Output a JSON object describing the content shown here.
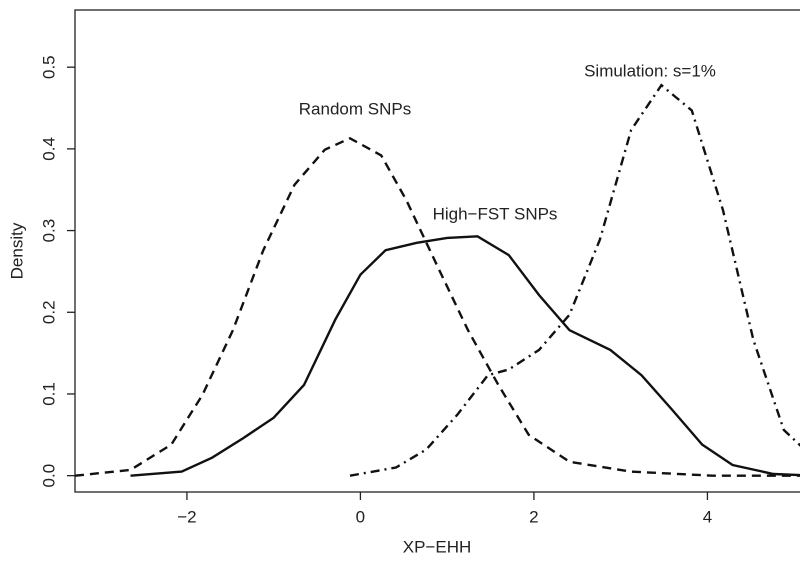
{
  "chart_data": {
    "type": "line",
    "x_label": "XP−EHH",
    "y_label": "Density",
    "xlim": [
      -3.29,
      5.24
    ],
    "ylim": [
      -0.02,
      0.57
    ],
    "xticks": [
      {
        "value": -2,
        "label": "−2"
      },
      0,
      2,
      4
    ],
    "yticks": [
      {
        "value": 0,
        "label": "0.0"
      },
      0.1,
      0.2,
      0.3,
      0.4,
      0.5
    ],
    "annotations": [
      "Random SNPs",
      "High−FST SNPs",
      "Simulation: s=1%"
    ],
    "series": [
      {
        "color": "#111111",
        "dash": "dashed",
        "x": [
          -3.29,
          -2.65,
          -2.18,
          -1.82,
          -1.47,
          -1.12,
          -0.76,
          -0.41,
          -0.12,
          0.24,
          0.53,
          0.88,
          1.24,
          1.59,
          1.94,
          2.41,
          3.12,
          4.06,
          5.24
        ],
        "values": [
          0,
          0.007,
          0.038,
          0.099,
          0.178,
          0.276,
          0.356,
          0.399,
          0.413,
          0.392,
          0.337,
          0.258,
          0.178,
          0.111,
          0.05,
          0.017,
          0.005,
          0,
          0
        ]
      },
      {
        "color": "#111111",
        "dash": "solid",
        "x": [
          -2.65,
          -2.06,
          -1.71,
          -1.35,
          -1.0,
          -0.65,
          -0.29,
          0,
          0.29,
          0.65,
          1.0,
          1.35,
          1.71,
          2.06,
          2.41,
          2.88,
          3.24,
          3.59,
          3.94,
          4.29,
          4.76,
          5.24
        ],
        "values": [
          0,
          0.005,
          0.022,
          0.046,
          0.071,
          0.111,
          0.191,
          0.246,
          0.276,
          0.285,
          0.291,
          0.293,
          0.27,
          0.221,
          0.178,
          0.154,
          0.123,
          0.081,
          0.038,
          0.013,
          0.002,
          0
        ]
      },
      {
        "color": "#111111",
        "dash": "dashdot",
        "x": [
          -0.12,
          0.41,
          0.76,
          1.12,
          1.47,
          1.71,
          2.06,
          2.41,
          2.76,
          3.12,
          3.47,
          3.82,
          4.18,
          4.53,
          4.88,
          5.24
        ],
        "values": [
          0,
          0.01,
          0.032,
          0.075,
          0.123,
          0.13,
          0.154,
          0.197,
          0.289,
          0.423,
          0.478,
          0.447,
          0.325,
          0.166,
          0.056,
          0.02
        ]
      }
    ]
  }
}
